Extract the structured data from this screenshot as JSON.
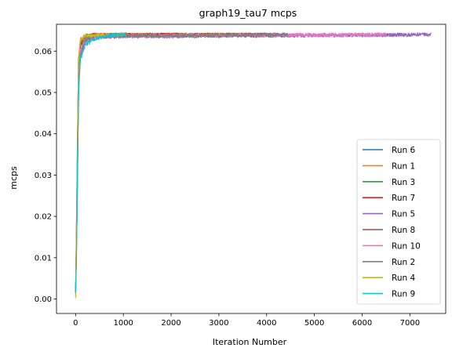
{
  "chart_data": {
    "type": "line",
    "title": "graph19_tau7 mcps",
    "xlabel": "Iteration Number",
    "ylabel": "mcps",
    "xlim": [
      -400,
      7750
    ],
    "ylim": [
      -0.0035,
      0.0665
    ],
    "xticks": [
      0,
      1000,
      2000,
      3000,
      4000,
      5000,
      6000,
      7000
    ],
    "xtick_labels": [
      "0",
      "1000",
      "2000",
      "3000",
      "4000",
      "5000",
      "6000",
      "7000"
    ],
    "yticks": [
      0.0,
      0.01,
      0.02,
      0.03,
      0.04,
      0.05,
      0.06
    ],
    "ytick_labels": [
      "0.00",
      "0.01",
      "0.02",
      "0.03",
      "0.04",
      "0.05",
      "0.06"
    ],
    "grid": false,
    "legend_position": "lower-right",
    "series": [
      {
        "name": "Run 6",
        "color": "#1f77b4",
        "length": 4200,
        "noise": 0.0004,
        "points": [
          [
            0,
            0.0015
          ],
          [
            30,
            0.02
          ],
          [
            60,
            0.05
          ],
          [
            100,
            0.06
          ],
          [
            200,
            0.0632
          ],
          [
            400,
            0.0638
          ],
          [
            4200,
            0.064
          ]
        ]
      },
      {
        "name": "Run 1",
        "color": "#ff7f0e",
        "length": 3800,
        "noise": 0.0004,
        "points": [
          [
            0,
            0.0015
          ],
          [
            30,
            0.03
          ],
          [
            60,
            0.058
          ],
          [
            100,
            0.0628
          ],
          [
            200,
            0.0638
          ],
          [
            400,
            0.064
          ],
          [
            3800,
            0.064
          ]
        ]
      },
      {
        "name": "Run 3",
        "color": "#2ca02c",
        "length": 3500,
        "noise": 0.0004,
        "points": [
          [
            0,
            0.0015
          ],
          [
            30,
            0.025
          ],
          [
            60,
            0.055
          ],
          [
            100,
            0.0615
          ],
          [
            200,
            0.0635
          ],
          [
            400,
            0.0638
          ],
          [
            3500,
            0.064
          ]
        ]
      },
      {
        "name": "Run 7",
        "color": "#d62728",
        "length": 4100,
        "noise": 0.0004,
        "points": [
          [
            0,
            0.0015
          ],
          [
            30,
            0.028
          ],
          [
            60,
            0.057
          ],
          [
            100,
            0.062
          ],
          [
            200,
            0.0636
          ],
          [
            400,
            0.064
          ],
          [
            4100,
            0.064
          ]
        ]
      },
      {
        "name": "Run 5",
        "color": "#9467bd",
        "length": 7450,
        "noise": 0.00045,
        "points": [
          [
            0,
            0.0015
          ],
          [
            30,
            0.02
          ],
          [
            60,
            0.05
          ],
          [
            100,
            0.058
          ],
          [
            200,
            0.0625
          ],
          [
            400,
            0.0635
          ],
          [
            7450,
            0.064
          ]
        ]
      },
      {
        "name": "Run 8",
        "color": "#8c564b",
        "length": 4300,
        "noise": 0.0004,
        "points": [
          [
            0,
            0.0015
          ],
          [
            30,
            0.024
          ],
          [
            60,
            0.054
          ],
          [
            100,
            0.061
          ],
          [
            200,
            0.0633
          ],
          [
            400,
            0.0638
          ],
          [
            4300,
            0.064
          ]
        ]
      },
      {
        "name": "Run 10",
        "color": "#e377c2",
        "length": 6500,
        "noise": 0.00045,
        "points": [
          [
            0,
            0.0015
          ],
          [
            30,
            0.022
          ],
          [
            60,
            0.052
          ],
          [
            100,
            0.06
          ],
          [
            200,
            0.063
          ],
          [
            400,
            0.0637
          ],
          [
            6500,
            0.064
          ]
        ]
      },
      {
        "name": "Run 2",
        "color": "#7f7f7f",
        "length": 4450,
        "noise": 0.0004,
        "points": [
          [
            0,
            0.0015
          ],
          [
            30,
            0.021
          ],
          [
            60,
            0.05
          ],
          [
            100,
            0.059
          ],
          [
            200,
            0.0628
          ],
          [
            400,
            0.0636
          ],
          [
            4450,
            0.064
          ]
        ]
      },
      {
        "name": "Run 4",
        "color": "#bcbd22",
        "length": 1000,
        "noise": 0.0004,
        "points": [
          [
            0,
            0.0002
          ],
          [
            30,
            0.03
          ],
          [
            60,
            0.057
          ],
          [
            100,
            0.0625
          ],
          [
            200,
            0.0636
          ],
          [
            400,
            0.0638
          ],
          [
            1000,
            0.064
          ]
        ]
      },
      {
        "name": "Run 9",
        "color": "#17becf",
        "length": 1050,
        "noise": 0.0005,
        "points": [
          [
            0,
            0.0015
          ],
          [
            20,
            0.01
          ],
          [
            40,
            0.035
          ],
          [
            70,
            0.052
          ],
          [
            100,
            0.058
          ],
          [
            200,
            0.0615
          ],
          [
            400,
            0.063
          ],
          [
            700,
            0.0638
          ],
          [
            1050,
            0.0641
          ]
        ]
      }
    ]
  }
}
